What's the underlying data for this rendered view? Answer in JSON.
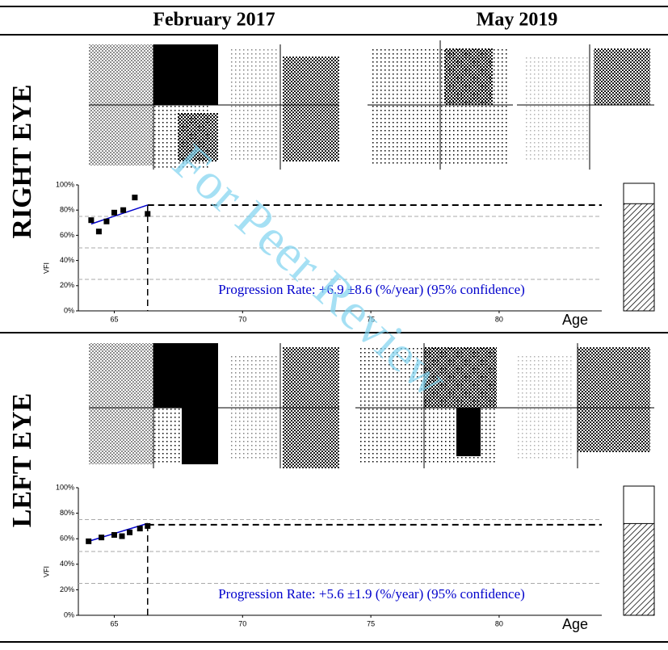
{
  "columns": [
    "February 2017",
    "May 2019"
  ],
  "watermark": "For Peer Review",
  "chart_data": [
    {
      "type": "line",
      "title": "RIGHT EYE",
      "xlabel": "Age",
      "ylabel": "VFI",
      "xlim": [
        63.6,
        84
      ],
      "xticks": [
        65,
        70,
        75,
        80
      ],
      "ylim": [
        0,
        100
      ],
      "yticks": [
        {
          "value": 0,
          "label": "0%"
        },
        {
          "value": 20,
          "label": "20%"
        },
        {
          "value": 40,
          "label": "40%"
        },
        {
          "value": 60,
          "label": "60%"
        },
        {
          "value": 80,
          "label": "80%"
        },
        {
          "value": 100,
          "label": "100%"
        }
      ],
      "reference_lines": [
        25,
        50,
        75
      ],
      "series": [
        {
          "color": "#000000",
          "x": [
            64.1,
            64.4,
            64.7,
            65.0,
            65.35,
            65.8,
            66.3
          ],
          "values": [
            72,
            63,
            71,
            78,
            80,
            90,
            77
          ]
        }
      ],
      "trend": {
        "color": "#0000cc",
        "x": [
          64.1,
          66.3
        ],
        "values": [
          69,
          84
        ]
      },
      "current": {
        "x": 66.3,
        "value": 84
      },
      "annotation": "Progression Rate: +6.9 ±8.6 (%/year) (95% confidence)"
    },
    {
      "type": "line",
      "title": "LEFT EYE",
      "xlabel": "Age",
      "ylabel": "VFI",
      "xlim": [
        63.6,
        84
      ],
      "xticks": [
        65,
        70,
        75,
        80
      ],
      "ylim": [
        0,
        100
      ],
      "yticks": [
        {
          "value": 0,
          "label": "0%"
        },
        {
          "value": 20,
          "label": "20%"
        },
        {
          "value": 40,
          "label": "40%"
        },
        {
          "value": 60,
          "label": "60%"
        },
        {
          "value": 80,
          "label": "80%"
        },
        {
          "value": 100,
          "label": "100%"
        }
      ],
      "reference_lines": [
        25,
        50,
        75
      ],
      "series": [
        {
          "color": "#000000",
          "x": [
            64.0,
            64.5,
            65.0,
            65.3,
            65.6,
            66.0,
            66.3
          ],
          "values": [
            58,
            61,
            63,
            62,
            65,
            68,
            70
          ]
        }
      ],
      "trend": {
        "color": "#0000cc",
        "x": [
          64.0,
          66.3
        ],
        "values": [
          58,
          72
        ]
      },
      "current": {
        "x": 66.3,
        "value": 71
      },
      "annotation": "Progression Rate: +5.6 ±1.9 (%/year) (95% confidence)"
    }
  ]
}
